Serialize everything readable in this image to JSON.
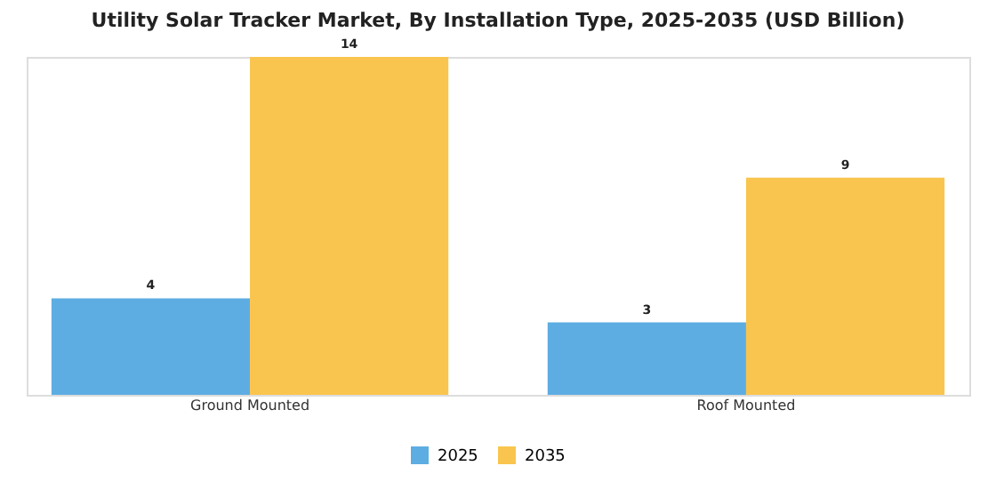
{
  "chart_data": {
    "type": "bar",
    "title": "Utility Solar Tracker Market, By Installation Type, 2025-2035 (USD Billion)",
    "categories": [
      "Ground Mounted",
      "Roof Mounted"
    ],
    "series": [
      {
        "name": "2025",
        "color": "#5dade2",
        "values": [
          4,
          3
        ]
      },
      {
        "name": "2035",
        "color": "#f9c54e",
        "values": [
          14,
          9
        ]
      }
    ],
    "data_labels": true,
    "legend": "bottom"
  }
}
